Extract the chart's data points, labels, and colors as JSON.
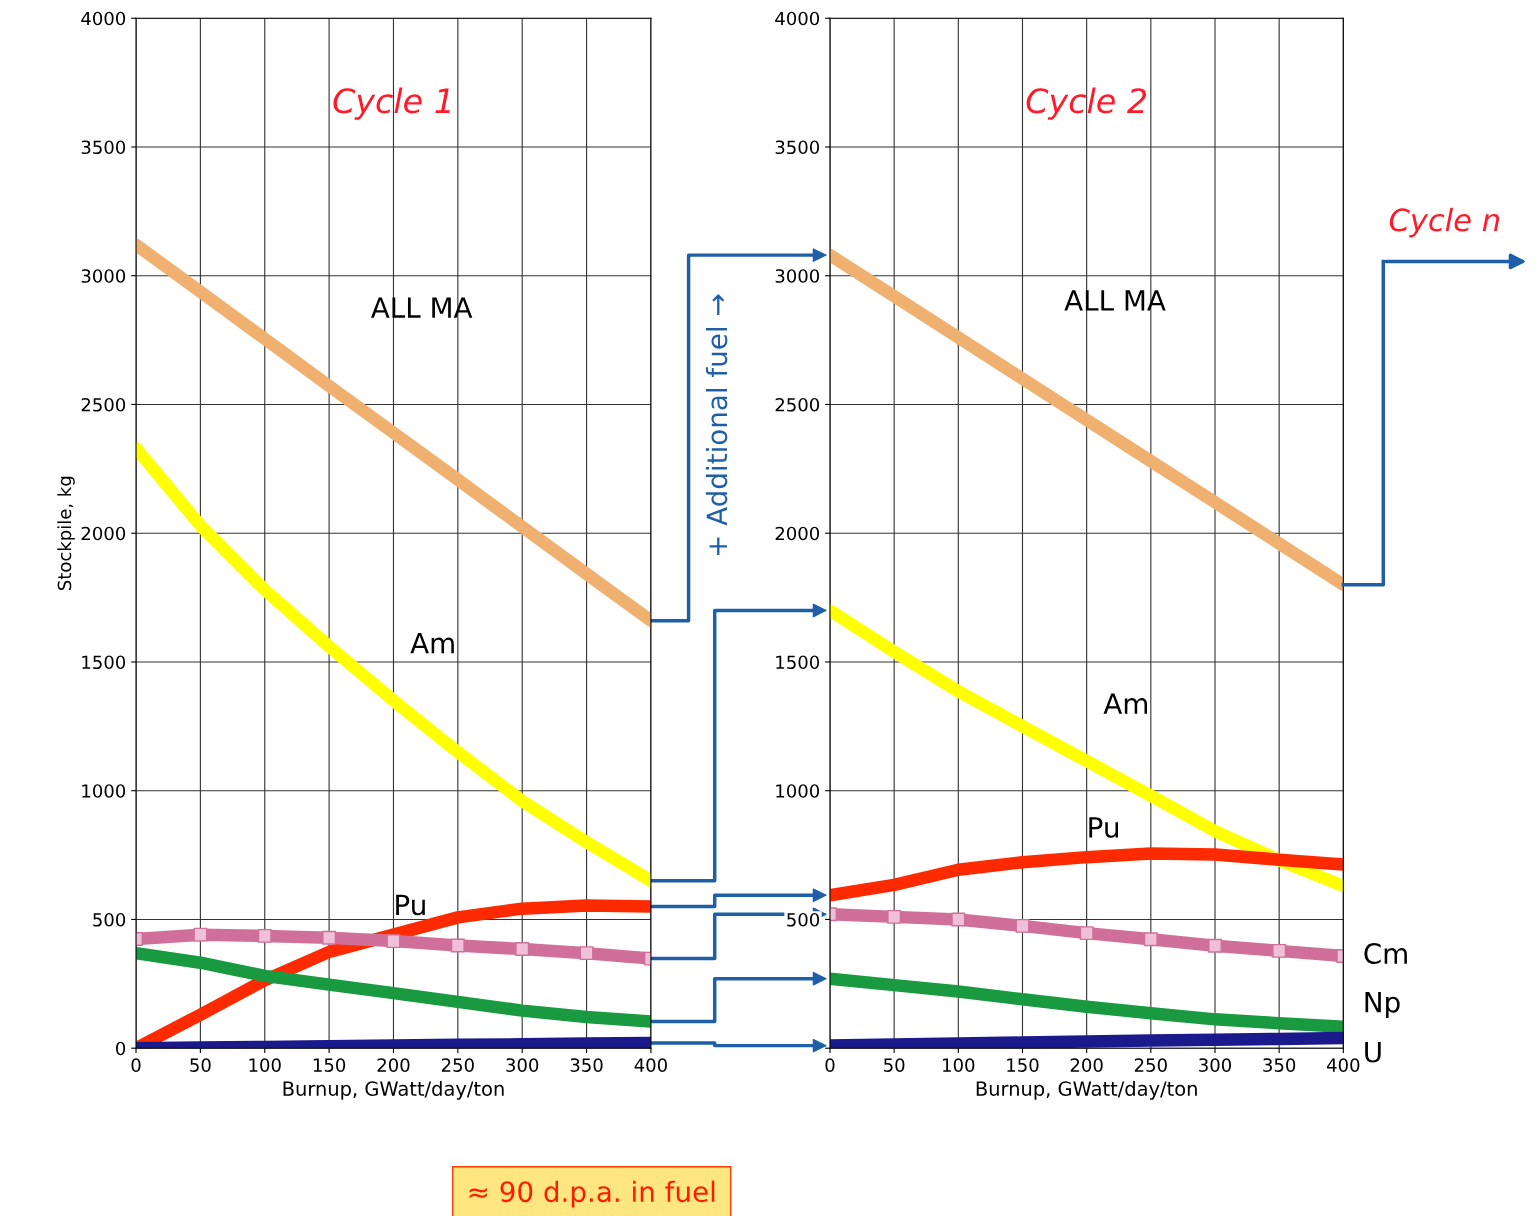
{
  "chart_data": [
    {
      "type": "line",
      "title": "Cycle 1",
      "xlabel": "Burnup, GWatt/day/ton",
      "ylabel": "Stockpile, kg",
      "x": [
        0,
        50,
        100,
        150,
        200,
        250,
        300,
        350,
        400
      ],
      "xlim": [
        0,
        400
      ],
      "ylim": [
        0,
        4000
      ],
      "xticks": [
        0,
        50,
        100,
        150,
        200,
        250,
        300,
        350,
        400
      ],
      "yticks": [
        0,
        500,
        1000,
        1500,
        2000,
        2500,
        3000,
        3500,
        4000
      ],
      "grid": true,
      "legend": false,
      "series": [
        {
          "name": "ALL MA",
          "color": "#f0b070",
          "values": [
            3120,
            2938,
            2755,
            2572,
            2390,
            2208,
            2025,
            1842,
            1660
          ]
        },
        {
          "name": "Am",
          "color": "#ffff00",
          "values": [
            2330,
            2030,
            1780,
            1560,
            1350,
            1150,
            960,
            800,
            650
          ]
        },
        {
          "name": "Pu",
          "color": "#ff2a00",
          "values": [
            0,
            130,
            264,
            374,
            441,
            508,
            542,
            554,
            550
          ]
        },
        {
          "color": "#d0709a",
          "marker": "square",
          "values": [
            424,
            441,
            436,
            429,
            416,
            399,
            385,
            369,
            348
          ]
        },
        {
          "color": "#1a9a40",
          "values": [
            369,
            332,
            281,
            247,
            214,
            180,
            146,
            121,
            104
          ]
        },
        {
          "color": "#1a1a8c",
          "values": [
            0,
            3,
            5,
            8,
            10,
            13,
            15,
            18,
            20
          ]
        }
      ],
      "annotations": [
        "+ Additional fuel →",
        "≈ 90 d.p.a. in fuel"
      ]
    },
    {
      "type": "line",
      "title": "Cycle 2",
      "xlabel": "Burnup, GWatt/day/ton",
      "x": [
        0,
        50,
        100,
        150,
        200,
        250,
        300,
        350,
        400
      ],
      "xlim": [
        0,
        400
      ],
      "ylim": [
        0,
        4000
      ],
      "xticks": [
        0,
        50,
        100,
        150,
        200,
        250,
        300,
        350,
        400
      ],
      "yticks": [
        {
          "value": 0,
          "label": null
        },
        500,
        1000,
        1500,
        2000,
        2500,
        3000,
        3500,
        4000
      ],
      "grid": true,
      "legend": false,
      "series": [
        {
          "name": "ALL MA",
          "color": "#f0b070",
          "values": [
            3080,
            2920,
            2760,
            2600,
            2440,
            2280,
            2120,
            1960,
            1800
          ]
        },
        {
          "name": "Am",
          "color": "#ffff00",
          "values": [
            1700,
            1540,
            1386,
            1250,
            1115,
            980,
            843,
            730,
            630
          ]
        },
        {
          "name": "Pu",
          "color": "#ff2a00",
          "values": [
            594,
            634,
            693,
            722,
            742,
            756,
            752,
            732,
            713
          ]
        },
        {
          "name": "Cm",
          "color": "#d0709a",
          "marker": "square",
          "values": [
            520,
            510,
            500,
            475,
            447,
            423,
            398,
            378,
            358
          ]
        },
        {
          "name": "Np",
          "color": "#1a9a40",
          "values": [
            270,
            245,
            220,
            190,
            161,
            136,
            112,
            97,
            83
          ]
        },
        {
          "name": "U",
          "color": "#1a1a8c",
          "values": [
            10,
            14,
            18,
            22,
            26,
            30,
            33,
            36,
            40
          ]
        }
      ],
      "annotations": [
        "Cycle n"
      ]
    }
  ]
}
